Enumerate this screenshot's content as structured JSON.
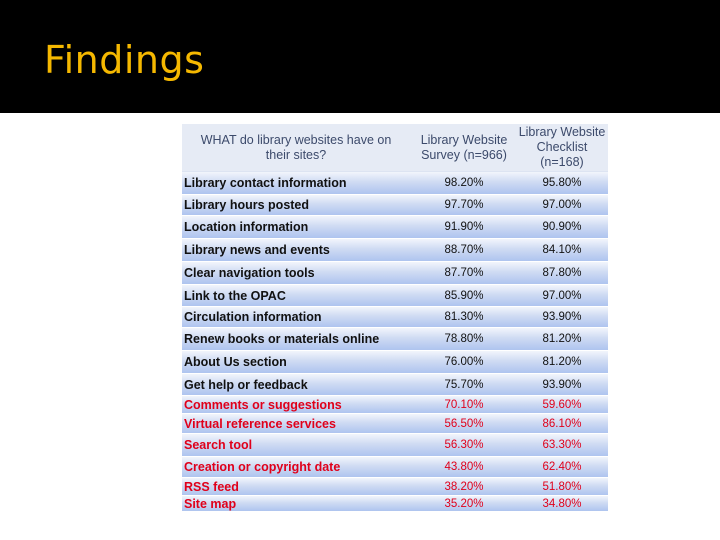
{
  "slide": {
    "title": "Findings"
  },
  "table": {
    "headers": {
      "question": [
        "WHAT do library websites have on",
        "their sites?"
      ],
      "survey": [
        "Library Website",
        "Survey (n=966)"
      ],
      "checklist": [
        "Library Website",
        "Checklist",
        "(n=168)"
      ]
    },
    "rows": [
      {
        "label": "Library contact  information",
        "survey": "98.20%",
        "checklist": "95.80%",
        "color": "black"
      },
      {
        "label": "Library hours posted",
        "survey": "97.70%",
        "checklist": "97.00%",
        "color": "black"
      },
      {
        "label": "Location information",
        "survey": "91.90%",
        "checklist": "90.90%",
        "color": "black"
      },
      {
        "label": "Library news and events",
        "survey": "88.70%",
        "checklist": "84.10%",
        "color": "black"
      },
      {
        "label": "Clear navigation tools",
        "survey": "87.70%",
        "checklist": "87.80%",
        "color": "black"
      },
      {
        "label": "Link to the OPAC",
        "survey": "85.90%",
        "checklist": "97.00%",
        "color": "black"
      },
      {
        "label": "Circulation information",
        "survey": "81.30%",
        "checklist": "93.90%",
        "color": "black"
      },
      {
        "label": "Renew books or materials online",
        "survey": "78.80%",
        "checklist": "81.20%",
        "color": "black"
      },
      {
        "label": "About Us section",
        "survey": "76.00%",
        "checklist": "81.20%",
        "color": "black"
      },
      {
        "label": "Get help or feedback",
        "survey": "75.70%",
        "checklist": "93.90%",
        "color": "black"
      },
      {
        "label": "Comments or suggestions",
        "survey": "70.10%",
        "checklist": "59.60%",
        "color": "red"
      },
      {
        "label": "Virtual reference services",
        "survey": "56.50%",
        "checklist": "86.10%",
        "color": "red"
      },
      {
        "label": "Search tool",
        "survey": "56.30%",
        "checklist": "63.30%",
        "color": "red"
      },
      {
        "label": "Creation or copyright date",
        "survey": "43.80%",
        "checklist": "62.40%",
        "color": "red"
      },
      {
        "label": "RSS feed",
        "survey": "38.20%",
        "checklist": "51.80%",
        "color": "red"
      },
      {
        "label": "Site map",
        "survey": "35.20%",
        "checklist": "34.80%",
        "color": "red"
      }
    ]
  }
}
